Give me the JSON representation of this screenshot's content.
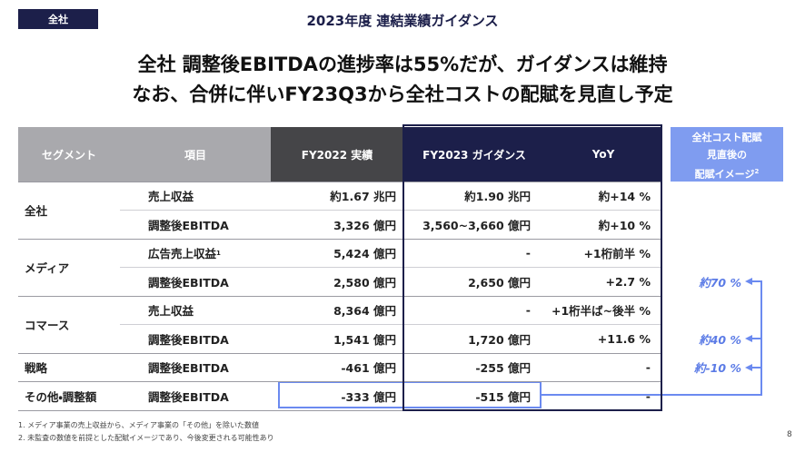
{
  "header": {
    "tag": "全社",
    "title": "2023年度 連結業績ガイダンス"
  },
  "headline": [
    "全社 調整後EBITDAの進捗率は55%だが、ガイダンスは維持",
    "なお、合併に伴いFY23Q3から全社コストの配賦を見直し予定"
  ],
  "table": {
    "columns": [
      "セグメント",
      "項目",
      "FY2022 実績",
      "FY2023 ガイダンス",
      "YoY"
    ],
    "groups": [
      {
        "segment": "全社",
        "rows": [
          {
            "item": "売上収益",
            "fy2022": "約1.67 兆円",
            "fy2023": "約1.90 兆円",
            "yoy": "約+14 %"
          },
          {
            "item": "調整後EBITDA",
            "fy2022": "3,326 億円",
            "fy2023": "3,560~3,660 億円",
            "yoy": "約+10 %"
          }
        ]
      },
      {
        "segment": "メディア",
        "rows": [
          {
            "item": "広告売上収益",
            "note_ref": "1",
            "fy2022": "5,424 億円",
            "fy2023": "-",
            "yoy": "+1桁前半 %"
          },
          {
            "item": "調整後EBITDA",
            "fy2022": "2,580 億円",
            "fy2023": "2,650 億円",
            "yoy": "+2.7 %",
            "realloc": "約70 %"
          }
        ]
      },
      {
        "segment": "コマース",
        "rows": [
          {
            "item": "売上収益",
            "fy2022": "8,364 億円",
            "fy2023": "-",
            "yoy": "+1桁半ば~後半 %"
          },
          {
            "item": "調整後EBITDA",
            "fy2022": "1,541 億円",
            "fy2023": "1,720 億円",
            "yoy": "+11.6 %",
            "realloc": "約40 %"
          }
        ]
      },
      {
        "segment": "戦略",
        "rows": [
          {
            "item": "調整後EBITDA",
            "fy2022": "-461 億円",
            "fy2023": "-255 億円",
            "yoy": "-",
            "realloc": "約-10 %"
          }
        ]
      },
      {
        "segment": "その他・調整額",
        "rows": [
          {
            "item": "調整後EBITDA",
            "fy2022": "-333 億円",
            "fy2023": "-515 億円",
            "yoy": "-"
          }
        ]
      }
    ]
  },
  "side": {
    "title": [
      "全社コスト配賦",
      "見直後の",
      "配賦イメージ"
    ],
    "note_ref": "2"
  },
  "footnotes": [
    "1.  メディア事業の売上収益から、メディア事業の「その他」を除いた数値",
    "2.  未監査の数値を前提とした配賦イメージであり、今後変更される可能性あり"
  ],
  "page_number": "8"
}
